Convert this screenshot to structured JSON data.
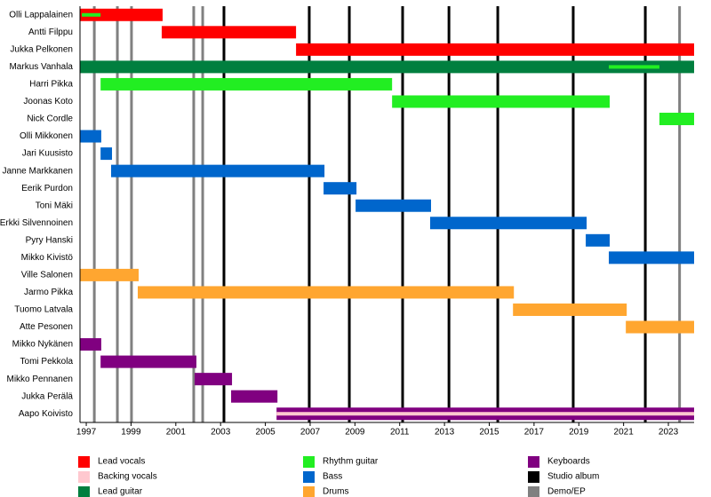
{
  "chart_data": {
    "type": "timeline",
    "roles": [
      {
        "name": "Lead vocals",
        "color": "#ff0000"
      },
      {
        "name": "Backing vocals",
        "color": "#ffc8cf"
      },
      {
        "name": "Lead guitar",
        "color": "#007f3f"
      },
      {
        "name": "Rhythm guitar",
        "color": "#22ee22"
      },
      {
        "name": "Bass",
        "color": "#0066cc"
      },
      {
        "name": "Drums",
        "color": "#ffa630"
      },
      {
        "name": "Keyboards",
        "color": "#800080"
      }
    ],
    "albums": {
      "name": "Studio album",
      "color": "#000000",
      "x": [
        2003.15,
        2006.96,
        2008.75,
        2011.13,
        2013.2,
        2015.38,
        2018.75,
        2021.97
      ]
    },
    "demos": {
      "name": "Demo/EP",
      "color": "#808080",
      "x": [
        1997.36,
        1998.39,
        1999.02,
        2001.8,
        2002.2,
        2023.5
      ]
    },
    "members": [
      {
        "name": "Olli Lappalainen",
        "periods": [
          {
            "role": "Lead vocals",
            "from": 1996.72,
            "to": 2000.41
          }
        ],
        "secondary": [
          {
            "role": "Rhythm guitar",
            "from": 1996.8,
            "to": 1997.64
          }
        ]
      },
      {
        "name": "Antti Filppu",
        "periods": [
          {
            "role": "Lead vocals",
            "from": 2000.37,
            "to": 2006.37
          }
        ]
      },
      {
        "name": "Jukka Pelkonen",
        "periods": [
          {
            "role": "Lead vocals",
            "from": 2006.37,
            "to": 2024.15
          }
        ]
      },
      {
        "name": "Markus Vanhala",
        "periods": [
          {
            "role": "Lead guitar",
            "from": 1996.72,
            "to": 2024.15
          }
        ],
        "secondary": [
          {
            "role": "Rhythm guitar",
            "from": 2020.34,
            "to": 2022.6
          }
        ]
      },
      {
        "name": "Harri Pikka",
        "periods": [
          {
            "role": "Rhythm guitar",
            "from": 1997.64,
            "to": 2010.66
          }
        ]
      },
      {
        "name": "Joonas Koto",
        "periods": [
          {
            "role": "Rhythm guitar",
            "from": 2010.66,
            "to": 2020.38
          }
        ]
      },
      {
        "name": "Nick Cordle",
        "periods": [
          {
            "role": "Rhythm guitar",
            "from": 2022.6,
            "to": 2024.15
          }
        ]
      },
      {
        "name": "Olli Mikkonen",
        "periods": [
          {
            "role": "Bass",
            "from": 1996.72,
            "to": 1997.67
          }
        ]
      },
      {
        "name": "Jari Kuusisto",
        "periods": [
          {
            "role": "Bass",
            "from": 1997.64,
            "to": 1998.15
          }
        ]
      },
      {
        "name": "Janne Markkanen",
        "periods": [
          {
            "role": "Bass",
            "from": 1998.11,
            "to": 2007.64
          }
        ]
      },
      {
        "name": "Eerik Purdon",
        "periods": [
          {
            "role": "Bass",
            "from": 2007.6,
            "to": 2009.07
          }
        ]
      },
      {
        "name": "Toni Mäki",
        "periods": [
          {
            "role": "Bass",
            "from": 2009.03,
            "to": 2012.4
          }
        ]
      },
      {
        "name": "Erkki Silvennoinen",
        "periods": [
          {
            "role": "Bass",
            "from": 2012.36,
            "to": 2019.35
          }
        ]
      },
      {
        "name": "Pyry Hanski",
        "periods": [
          {
            "role": "Bass",
            "from": 2019.31,
            "to": 2020.38
          }
        ]
      },
      {
        "name": "Mikko Kivistö",
        "periods": [
          {
            "role": "Bass",
            "from": 2020.34,
            "to": 2024.15
          }
        ]
      },
      {
        "name": "Ville Salonen",
        "periods": [
          {
            "role": "Drums",
            "from": 1996.72,
            "to": 1999.34
          }
        ]
      },
      {
        "name": "Jarmo Pikka",
        "periods": [
          {
            "role": "Drums",
            "from": 1999.3,
            "to": 2016.1
          }
        ]
      },
      {
        "name": "Tuomo Latvala",
        "periods": [
          {
            "role": "Drums",
            "from": 2016.06,
            "to": 2021.14
          }
        ]
      },
      {
        "name": "Atte Pesonen",
        "periods": [
          {
            "role": "Drums",
            "from": 2021.1,
            "to": 2024.15
          }
        ]
      },
      {
        "name": "Mikko Nykänen",
        "periods": [
          {
            "role": "Keyboards",
            "from": 1996.72,
            "to": 1997.67
          }
        ]
      },
      {
        "name": "Tomi Pekkola",
        "periods": [
          {
            "role": "Keyboards",
            "from": 1997.64,
            "to": 2001.92
          }
        ]
      },
      {
        "name": "Mikko Pennanen",
        "periods": [
          {
            "role": "Keyboards",
            "from": 2001.84,
            "to": 2003.51
          }
        ]
      },
      {
        "name": "Jukka Perälä",
        "periods": [
          {
            "role": "Keyboards",
            "from": 2003.47,
            "to": 2005.54
          }
        ]
      },
      {
        "name": "Aapo Koivisto",
        "periods": [
          {
            "role": "Keyboards",
            "from": 2005.5,
            "to": 2024.15
          }
        ],
        "secondary": [
          {
            "role": "Backing vocals",
            "from": 2005.5,
            "to": 2024.15
          }
        ]
      }
    ],
    "xlim": [
      1996.72,
      2024.15
    ],
    "xticks": [
      1997,
      1999,
      2001,
      2003,
      2005,
      2007,
      2009,
      2011,
      2013,
      2015,
      2017,
      2019,
      2021,
      2023
    ]
  }
}
